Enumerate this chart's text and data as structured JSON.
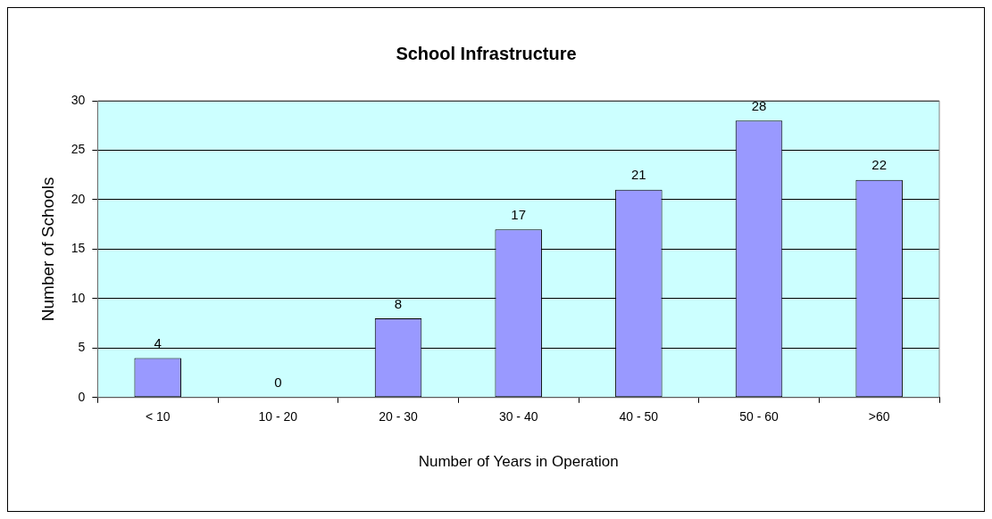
{
  "chart_data": {
    "type": "bar",
    "title": "School Infrastructure",
    "xlabel": "Number of Years in Operation",
    "ylabel": "Number of Schools",
    "categories": [
      "< 10",
      "10 - 20",
      "20 - 30",
      "30 - 40",
      "40 - 50",
      "50 - 60",
      ">60"
    ],
    "values": [
      4,
      0,
      8,
      17,
      21,
      28,
      22
    ],
    "color": "#9999ff",
    "ylim": [
      0,
      30
    ],
    "yticks": [
      0,
      5,
      10,
      15,
      20,
      25,
      30
    ],
    "grid": "y",
    "data_labels": true
  }
}
